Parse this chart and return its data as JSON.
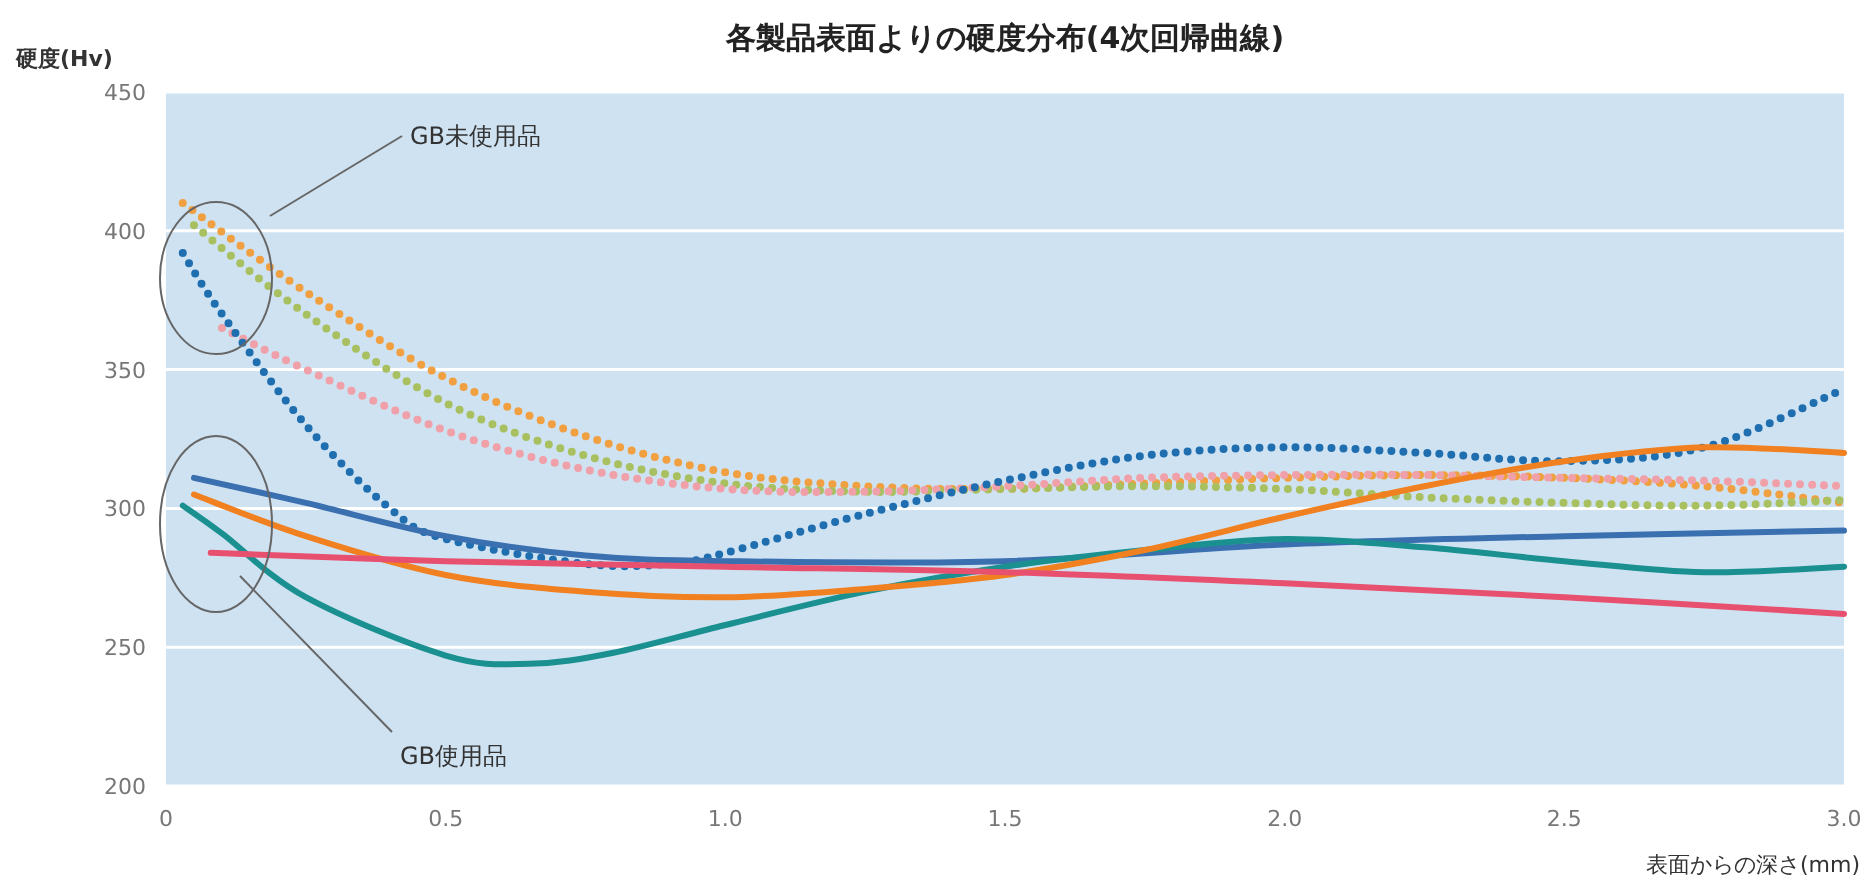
{
  "chart_data": {
    "type": "line",
    "title": "各製品表面よりの硬度分布(4次回帰曲線)",
    "xlabel": "表面からの深さ(mm)",
    "ylabel": "硬度(Hv)",
    "xlim": [
      0,
      3
    ],
    "xticks": [
      0,
      0.5,
      {
        "value": 1,
        "label": "1.0"
      },
      1.5,
      {
        "value": 2,
        "label": "2.0"
      },
      2.5,
      {
        "value": 3,
        "label": "3.0"
      }
    ],
    "ylim": [
      200,
      450
    ],
    "yticks": [
      200,
      250,
      300,
      350,
      400,
      450
    ],
    "grid": "y",
    "annotations": [
      "GB未使用品",
      "GB使用品"
    ],
    "series": [
      {
        "color": "#f0a040",
        "line_style": "dotted",
        "x": [
          0.03,
          0.25,
          0.5,
          0.75,
          1.0,
          1.25,
          1.5,
          1.75,
          2.0,
          2.25,
          2.5,
          2.75,
          3.0
        ],
        "values": [
          410,
          378,
          347,
          326,
          313,
          308,
          307,
          309,
          311,
          312,
          311,
          308,
          302
        ]
      },
      {
        "color": "#a8c060",
        "line_style": "dotted",
        "x": [
          0.05,
          0.25,
          0.5,
          0.75,
          1.0,
          1.25,
          1.5,
          1.75,
          2.0,
          2.25,
          2.5,
          2.75,
          3.0
        ],
        "values": [
          402,
          370,
          338,
          319,
          309,
          306,
          307,
          308,
          307,
          304,
          302,
          301,
          303
        ]
      },
      {
        "color": "#f0a0a8",
        "line_style": "dotted",
        "x": [
          0.1,
          0.25,
          0.5,
          0.75,
          1.0,
          1.25,
          1.5,
          1.75,
          2.0,
          2.25,
          2.5,
          2.75,
          3.0
        ],
        "values": [
          365,
          350,
          328,
          314,
          307,
          306,
          308,
          311,
          312,
          312,
          311,
          310,
          308
        ]
      },
      {
        "color": "#1f6fb0",
        "line_style": "dotted",
        "x": [
          0.03,
          0.1,
          0.25,
          0.4,
          0.5,
          0.75,
          0.9,
          1.0,
          1.25,
          1.5,
          1.75,
          2.0,
          2.25,
          2.5,
          2.75,
          3.0
        ],
        "values": [
          392,
          370,
          330,
          300,
          289,
          280,
          280,
          284,
          298,
          310,
          319,
          322,
          320,
          317,
          322,
          343
        ]
      },
      {
        "color": "#3a6fb0",
        "line_style": "solid",
        "x": [
          0.05,
          0.25,
          0.5,
          0.75,
          1.0,
          1.5,
          2.0,
          2.5,
          3.0
        ],
        "values": [
          311,
          302,
          290,
          283,
          281,
          281,
          287,
          290,
          292
        ]
      },
      {
        "color": "#1a9090",
        "line_style": "solid",
        "x": [
          0.03,
          0.1,
          0.25,
          0.5,
          0.65,
          0.8,
          1.0,
          1.25,
          1.5,
          1.75,
          2.0,
          2.25,
          2.5,
          2.75,
          3.0
        ],
        "values": [
          301,
          291,
          268,
          247,
          244,
          248,
          258,
          270,
          279,
          285,
          289,
          286,
          281,
          277,
          279
        ]
      },
      {
        "color": "#f08020",
        "line_style": "solid",
        "x": [
          0.05,
          0.25,
          0.5,
          0.75,
          1.0,
          1.25,
          1.5,
          1.75,
          2.0,
          2.25,
          2.5,
          2.75,
          3.0
        ],
        "values": [
          305,
          290,
          276,
          270,
          268,
          271,
          276,
          285,
          297,
          308,
          317,
          322,
          320
        ]
      },
      {
        "color": "#e85070",
        "line_style": "solid",
        "x": [
          0.08,
          0.5,
          1.0,
          1.5,
          2.0,
          2.5,
          3.0
        ],
        "values": [
          284,
          281,
          279,
          277,
          273,
          268,
          262
        ]
      }
    ]
  }
}
